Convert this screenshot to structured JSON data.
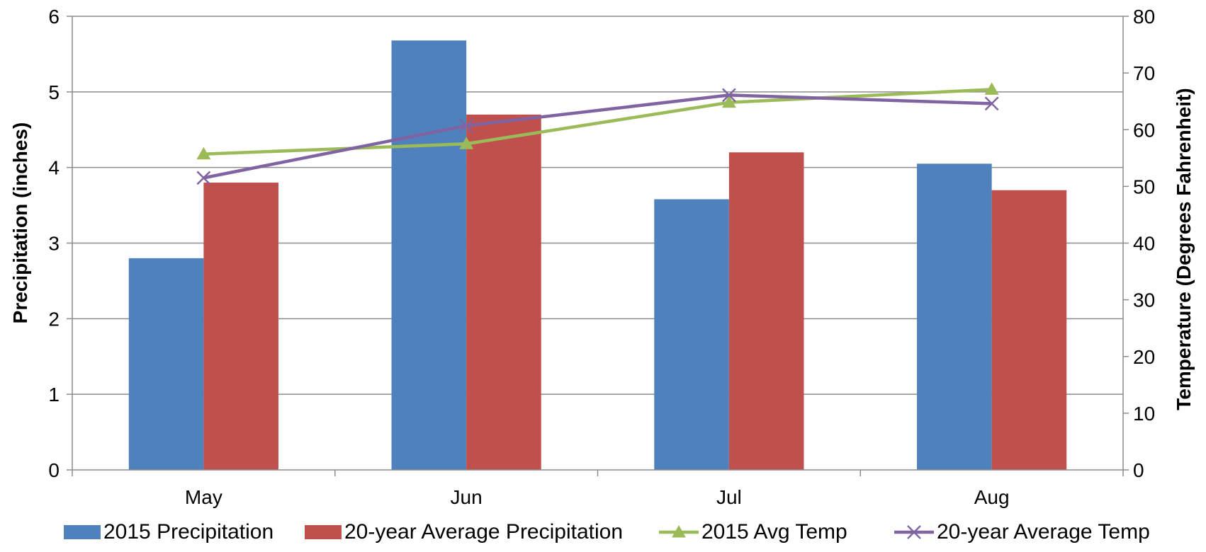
{
  "chart_data": {
    "type": "bar",
    "categories": [
      "May",
      "Jun",
      "Jul",
      "Aug"
    ],
    "series": [
      {
        "name": "2015 Precipitation",
        "kind": "bar",
        "axis": "left",
        "color": "#4F81BD",
        "values": [
          2.8,
          5.68,
          3.58,
          4.05
        ]
      },
      {
        "name": "20-year Average Precipitation",
        "kind": "bar",
        "axis": "left",
        "color": "#C0504D",
        "values": [
          3.8,
          4.7,
          4.2,
          3.7
        ]
      },
      {
        "name": "2015 Avg Temp",
        "kind": "line",
        "marker": "triangle",
        "axis": "right",
        "color": "#9BBB59",
        "values": [
          55.7,
          57.5,
          64.8,
          67.1
        ]
      },
      {
        "name": "20-year Average Temp",
        "kind": "line",
        "marker": "x",
        "axis": "right",
        "color": "#8064A2",
        "values": [
          51.5,
          60.7,
          66.1,
          64.6
        ]
      }
    ],
    "ylabel": "Precipitation (inches)",
    "y2label": "Temperature (Degrees Fahrenheit)",
    "ylim": [
      0,
      6
    ],
    "y2lim": [
      0,
      80
    ],
    "yticks": [
      "0",
      "1",
      "2",
      "3",
      "4",
      "5",
      "6"
    ],
    "y2ticks": [
      "0",
      "10",
      "20",
      "30",
      "40",
      "50",
      "60",
      "70",
      "80"
    ],
    "grid": true,
    "legend_position": "bottom"
  }
}
